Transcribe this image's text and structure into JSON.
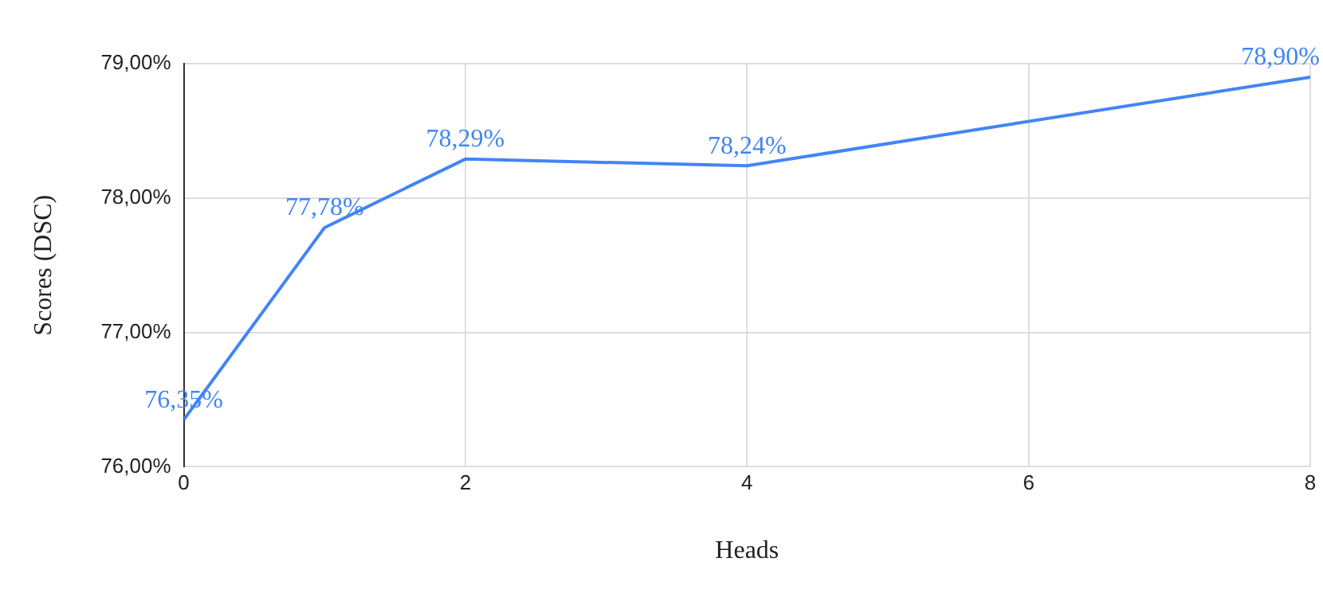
{
  "chart_data": {
    "type": "line",
    "xlabel": "Heads",
    "ylabel": "Scores (DSC)",
    "x": [
      0,
      1,
      2,
      4,
      8
    ],
    "series": [
      {
        "color": "#4285f4",
        "values": [
          76.35,
          77.78,
          78.29,
          78.24,
          78.9
        ],
        "value_labels": [
          "76,35%",
          "77,78%",
          "78,29%",
          "78,24%",
          "78,90%"
        ]
      }
    ],
    "xlim": [
      0,
      8
    ],
    "xticks": [
      0,
      2,
      4,
      6,
      8
    ],
    "ylim": [
      76,
      79
    ],
    "yticks": [
      {
        "value": 76,
        "label": "76,00%"
      },
      {
        "value": 77,
        "label": "77,00%"
      },
      {
        "value": 78,
        "label": "78,00%"
      },
      {
        "value": 79,
        "label": "79,00%"
      }
    ],
    "grid": true,
    "legend": false,
    "marker": "none",
    "line_style": "solid"
  }
}
